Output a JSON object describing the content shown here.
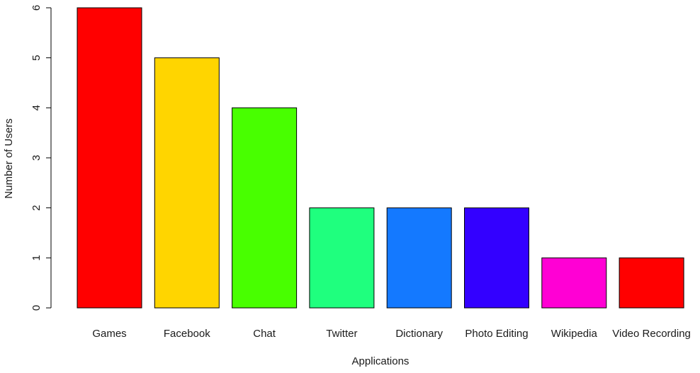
{
  "chart_data": {
    "type": "bar",
    "categories": [
      "Games",
      "Facebook",
      "Chat",
      "Twitter",
      "Dictionary",
      "Photo Editing",
      "Wikipedia",
      "Video Recording"
    ],
    "values": [
      6,
      5,
      4,
      2,
      2,
      2,
      1,
      1
    ],
    "colors": [
      "#ff0000",
      "#ffd500",
      "#48ff00",
      "#1fff7e",
      "#1479ff",
      "#3300ff",
      "#ff00d4",
      "#ff0000"
    ],
    "xlabel": "Applications",
    "ylabel": "Number of Users",
    "ylim": [
      0,
      6
    ],
    "yticks": [
      "0",
      "1",
      "2",
      "3",
      "4",
      "5",
      "6"
    ],
    "grid": false
  }
}
